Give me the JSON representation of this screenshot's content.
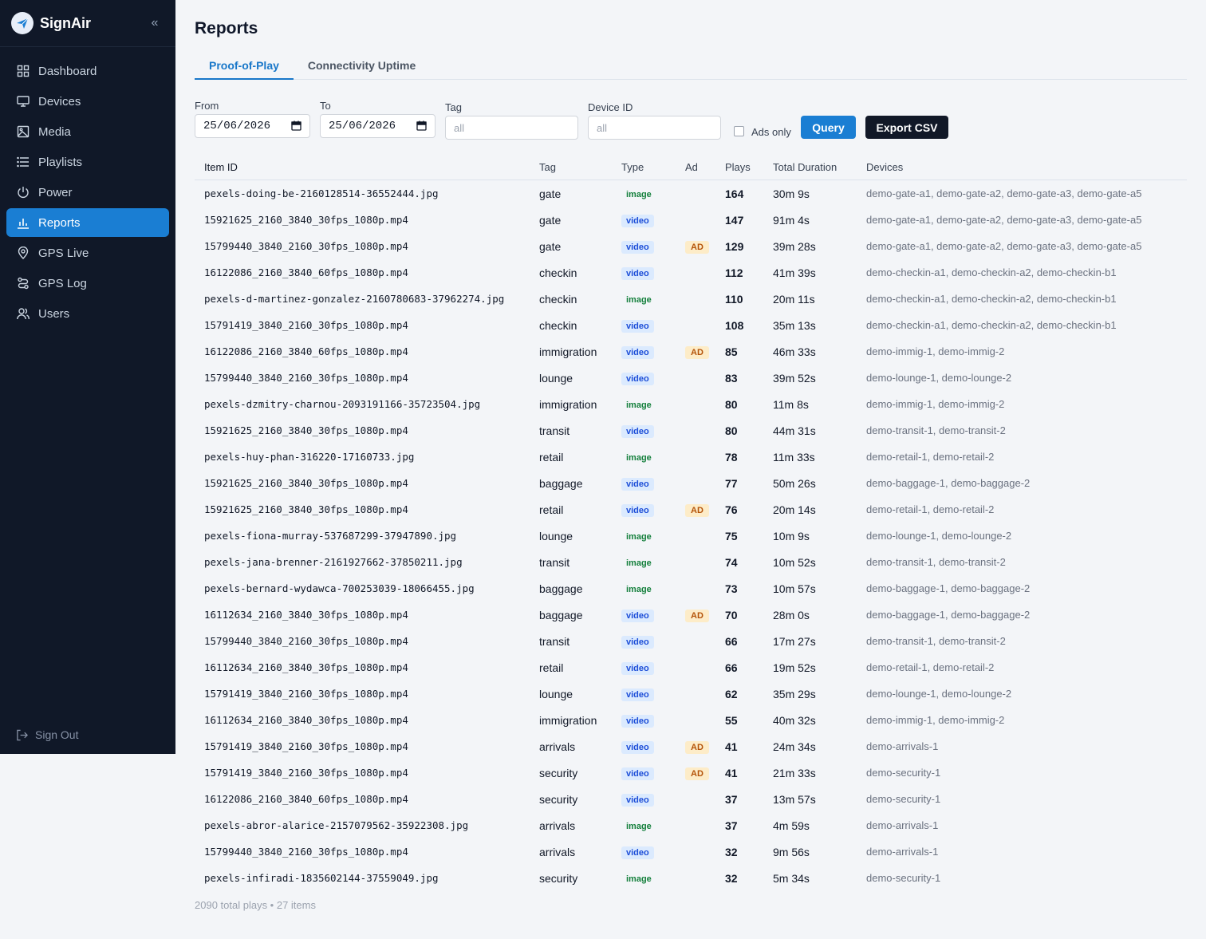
{
  "app": {
    "name": "SignAir"
  },
  "sidebar": {
    "items": [
      {
        "label": "Dashboard",
        "icon": "grid-icon"
      },
      {
        "label": "Devices",
        "icon": "monitor-icon"
      },
      {
        "label": "Media",
        "icon": "image-icon"
      },
      {
        "label": "Playlists",
        "icon": "list-icon"
      },
      {
        "label": "Power",
        "icon": "power-icon"
      },
      {
        "label": "Reports",
        "icon": "bar-chart-icon",
        "active": true
      },
      {
        "label": "GPS Live",
        "icon": "map-pin-icon"
      },
      {
        "label": "GPS Log",
        "icon": "route-icon"
      },
      {
        "label": "Users",
        "icon": "users-icon"
      }
    ],
    "signout": "Sign Out"
  },
  "page": {
    "title": "Reports"
  },
  "tabs": [
    {
      "label": "Proof-of-Play",
      "active": true
    },
    {
      "label": "Connectivity Uptime",
      "active": false
    }
  ],
  "filters": {
    "from_label": "From",
    "from_value": "25/06/2026",
    "to_label": "To",
    "to_value": "25/06/2026",
    "tag_label": "Tag",
    "tag_placeholder": "all",
    "device_label": "Device ID",
    "device_placeholder": "all",
    "ads_only_label": "Ads only",
    "ads_only_checked": false,
    "query_label": "Query",
    "export_label": "Export CSV"
  },
  "table": {
    "columns": [
      "Item ID",
      "Tag",
      "Type",
      "Ad",
      "Plays",
      "Total Duration",
      "Devices"
    ],
    "rows": [
      {
        "id": "pexels-doing-be-2160128514-36552444.jpg",
        "tag": "gate",
        "type": "image",
        "ad": "",
        "plays": "164",
        "duration": "30m 9s",
        "devices": "demo-gate-a1, demo-gate-a2, demo-gate-a3, demo-gate-a5"
      },
      {
        "id": "15921625_2160_3840_30fps_1080p.mp4",
        "tag": "gate",
        "type": "video",
        "ad": "",
        "plays": "147",
        "duration": "91m 4s",
        "devices": "demo-gate-a1, demo-gate-a2, demo-gate-a3, demo-gate-a5"
      },
      {
        "id": "15799440_3840_2160_30fps_1080p.mp4",
        "tag": "gate",
        "type": "video",
        "ad": "AD",
        "plays": "129",
        "duration": "39m 28s",
        "devices": "demo-gate-a1, demo-gate-a2, demo-gate-a3, demo-gate-a5"
      },
      {
        "id": "16122086_2160_3840_60fps_1080p.mp4",
        "tag": "checkin",
        "type": "video",
        "ad": "",
        "plays": "112",
        "duration": "41m 39s",
        "devices": "demo-checkin-a1, demo-checkin-a2, demo-checkin-b1"
      },
      {
        "id": "pexels-d-martinez-gonzalez-2160780683-37962274.jpg",
        "tag": "checkin",
        "type": "image",
        "ad": "",
        "plays": "110",
        "duration": "20m 11s",
        "devices": "demo-checkin-a1, demo-checkin-a2, demo-checkin-b1"
      },
      {
        "id": "15791419_3840_2160_30fps_1080p.mp4",
        "tag": "checkin",
        "type": "video",
        "ad": "",
        "plays": "108",
        "duration": "35m 13s",
        "devices": "demo-checkin-a1, demo-checkin-a2, demo-checkin-b1"
      },
      {
        "id": "16122086_2160_3840_60fps_1080p.mp4",
        "tag": "immigration",
        "type": "video",
        "ad": "AD",
        "plays": "85",
        "duration": "46m 33s",
        "devices": "demo-immig-1, demo-immig-2"
      },
      {
        "id": "15799440_3840_2160_30fps_1080p.mp4",
        "tag": "lounge",
        "type": "video",
        "ad": "",
        "plays": "83",
        "duration": "39m 52s",
        "devices": "demo-lounge-1, demo-lounge-2"
      },
      {
        "id": "pexels-dzmitry-charnou-2093191166-35723504.jpg",
        "tag": "immigration",
        "type": "image",
        "ad": "",
        "plays": "80",
        "duration": "11m 8s",
        "devices": "demo-immig-1, demo-immig-2"
      },
      {
        "id": "15921625_2160_3840_30fps_1080p.mp4",
        "tag": "transit",
        "type": "video",
        "ad": "",
        "plays": "80",
        "duration": "44m 31s",
        "devices": "demo-transit-1, demo-transit-2"
      },
      {
        "id": "pexels-huy-phan-316220-17160733.jpg",
        "tag": "retail",
        "type": "image",
        "ad": "",
        "plays": "78",
        "duration": "11m 33s",
        "devices": "demo-retail-1, demo-retail-2"
      },
      {
        "id": "15921625_2160_3840_30fps_1080p.mp4",
        "tag": "baggage",
        "type": "video",
        "ad": "",
        "plays": "77",
        "duration": "50m 26s",
        "devices": "demo-baggage-1, demo-baggage-2"
      },
      {
        "id": "15921625_2160_3840_30fps_1080p.mp4",
        "tag": "retail",
        "type": "video",
        "ad": "AD",
        "plays": "76",
        "duration": "20m 14s",
        "devices": "demo-retail-1, demo-retail-2"
      },
      {
        "id": "pexels-fiona-murray-537687299-37947890.jpg",
        "tag": "lounge",
        "type": "image",
        "ad": "",
        "plays": "75",
        "duration": "10m 9s",
        "devices": "demo-lounge-1, demo-lounge-2"
      },
      {
        "id": "pexels-jana-brenner-2161927662-37850211.jpg",
        "tag": "transit",
        "type": "image",
        "ad": "",
        "plays": "74",
        "duration": "10m 52s",
        "devices": "demo-transit-1, demo-transit-2"
      },
      {
        "id": "pexels-bernard-wydawca-700253039-18066455.jpg",
        "tag": "baggage",
        "type": "image",
        "ad": "",
        "plays": "73",
        "duration": "10m 57s",
        "devices": "demo-baggage-1, demo-baggage-2"
      },
      {
        "id": "16112634_2160_3840_30fps_1080p.mp4",
        "tag": "baggage",
        "type": "video",
        "ad": "AD",
        "plays": "70",
        "duration": "28m 0s",
        "devices": "demo-baggage-1, demo-baggage-2"
      },
      {
        "id": "15799440_3840_2160_30fps_1080p.mp4",
        "tag": "transit",
        "type": "video",
        "ad": "",
        "plays": "66",
        "duration": "17m 27s",
        "devices": "demo-transit-1, demo-transit-2"
      },
      {
        "id": "16112634_2160_3840_30fps_1080p.mp4",
        "tag": "retail",
        "type": "video",
        "ad": "",
        "plays": "66",
        "duration": "19m 52s",
        "devices": "demo-retail-1, demo-retail-2"
      },
      {
        "id": "15791419_3840_2160_30fps_1080p.mp4",
        "tag": "lounge",
        "type": "video",
        "ad": "",
        "plays": "62",
        "duration": "35m 29s",
        "devices": "demo-lounge-1, demo-lounge-2"
      },
      {
        "id": "16112634_2160_3840_30fps_1080p.mp4",
        "tag": "immigration",
        "type": "video",
        "ad": "",
        "plays": "55",
        "duration": "40m 32s",
        "devices": "demo-immig-1, demo-immig-2"
      },
      {
        "id": "15791419_3840_2160_30fps_1080p.mp4",
        "tag": "arrivals",
        "type": "video",
        "ad": "AD",
        "plays": "41",
        "duration": "24m 34s",
        "devices": "demo-arrivals-1"
      },
      {
        "id": "15791419_3840_2160_30fps_1080p.mp4",
        "tag": "security",
        "type": "video",
        "ad": "AD",
        "plays": "41",
        "duration": "21m 33s",
        "devices": "demo-security-1"
      },
      {
        "id": "16122086_2160_3840_60fps_1080p.mp4",
        "tag": "security",
        "type": "video",
        "ad": "",
        "plays": "37",
        "duration": "13m 57s",
        "devices": "demo-security-1"
      },
      {
        "id": "pexels-abror-alarice-2157079562-35922308.jpg",
        "tag": "arrivals",
        "type": "image",
        "ad": "",
        "plays": "37",
        "duration": "4m 59s",
        "devices": "demo-arrivals-1"
      },
      {
        "id": "15799440_3840_2160_30fps_1080p.mp4",
        "tag": "arrivals",
        "type": "video",
        "ad": "",
        "plays": "32",
        "duration": "9m 56s",
        "devices": "demo-arrivals-1"
      },
      {
        "id": "pexels-infiradi-1835602144-37559049.jpg",
        "tag": "security",
        "type": "image",
        "ad": "",
        "plays": "32",
        "duration": "5m 34s",
        "devices": "demo-security-1"
      }
    ]
  },
  "summary": "2090 total plays • 27 items",
  "colors": {
    "sidebar_bg": "#101828",
    "accent": "#1a7ed3",
    "export_bg": "#111827"
  }
}
